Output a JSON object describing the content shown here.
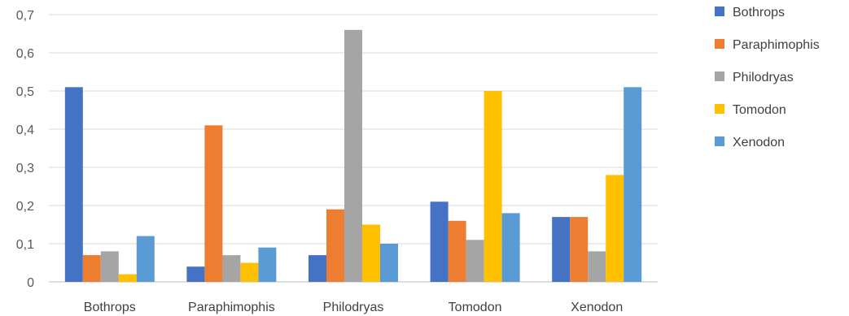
{
  "chart_data": {
    "type": "bar",
    "categories": [
      "Bothrops",
      "Paraphimophis",
      "Philodryas",
      "Tomodon",
      "Xenodon"
    ],
    "series": [
      {
        "name": "Bothrops",
        "color": "#4472C4",
        "values": [
          0.51,
          0.04,
          0.07,
          0.21,
          0.17
        ]
      },
      {
        "name": "Paraphimophis",
        "color": "#ED7D31",
        "values": [
          0.07,
          0.41,
          0.19,
          0.16,
          0.17
        ]
      },
      {
        "name": "Philodryas",
        "color": "#A5A5A5",
        "values": [
          0.08,
          0.07,
          0.66,
          0.11,
          0.08
        ]
      },
      {
        "name": "Tomodon",
        "color": "#FFC000",
        "values": [
          0.02,
          0.05,
          0.15,
          0.5,
          0.28
        ]
      },
      {
        "name": "Xenodon",
        "color": "#5B9BD5",
        "values": [
          0.12,
          0.09,
          0.1,
          0.18,
          0.51
        ]
      }
    ],
    "ylim": [
      0,
      0.7
    ],
    "yticks": [
      0,
      0.1,
      0.2,
      0.3,
      0.4,
      0.5,
      0.6,
      0.7
    ],
    "ytick_labels": [
      "0",
      "0,1",
      "0,2",
      "0,3",
      "0,4",
      "0,5",
      "0,6",
      "0,7"
    ],
    "grid": true,
    "legend_position": "right",
    "title": "",
    "xlabel": "",
    "ylabel": ""
  }
}
